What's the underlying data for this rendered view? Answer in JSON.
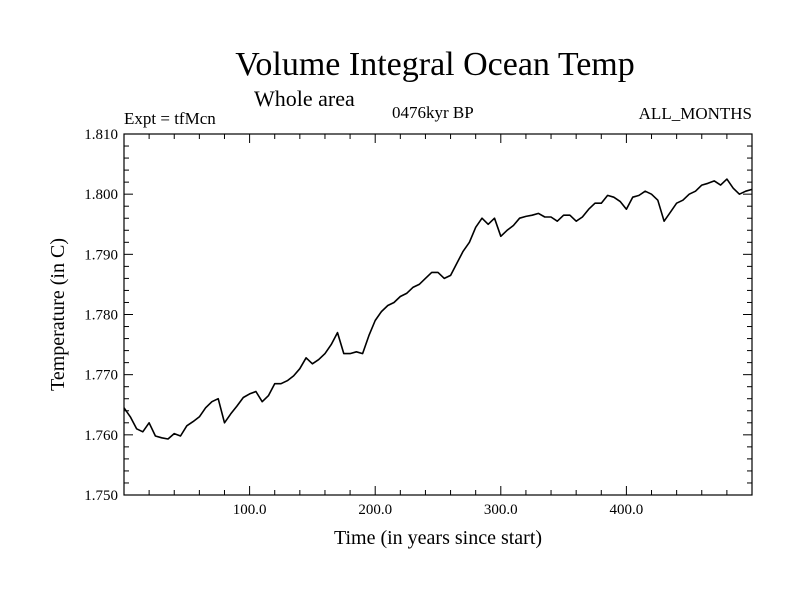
{
  "titles": {
    "main": "Volume Integral Ocean Temp",
    "sub": "Whole area",
    "experiment": "Expt = tfMcn",
    "epoch": "0476kyr BP",
    "months": "ALL_MONTHS"
  },
  "chart_data": {
    "type": "line",
    "title": "Volume Integral Ocean Temp",
    "subtitle": "Whole area",
    "xlabel": "Time (in years since start)",
    "ylabel": "Temperature (in C)",
    "xlim": [
      0,
      500
    ],
    "ylim": [
      1.75,
      1.81
    ],
    "xticks": [
      100,
      200,
      300,
      400
    ],
    "xtick_labels": [
      "100.0",
      "200.0",
      "300.0",
      "400.0"
    ],
    "yticks": [
      1.75,
      1.76,
      1.77,
      1.78,
      1.79,
      1.8,
      1.81
    ],
    "ytick_labels": [
      "1.750",
      "1.760",
      "1.770",
      "1.780",
      "1.790",
      "1.800",
      "1.810"
    ],
    "grid": false,
    "line_color": "#000000",
    "series": [
      {
        "x": [
          0,
          5,
          10,
          15,
          20,
          25,
          30,
          35,
          40,
          45,
          50,
          55,
          60,
          65,
          70,
          75,
          80,
          85,
          90,
          95,
          100,
          105,
          110,
          115,
          120,
          125,
          130,
          135,
          140,
          145,
          150,
          155,
          160,
          165,
          170,
          175,
          180,
          185,
          190,
          195,
          200,
          205,
          210,
          215,
          220,
          225,
          230,
          235,
          240,
          245,
          250,
          255,
          260,
          265,
          270,
          275,
          280,
          285,
          290,
          295,
          300,
          305,
          310,
          315,
          320,
          325,
          330,
          335,
          340,
          345,
          350,
          355,
          360,
          365,
          370,
          375,
          380,
          385,
          390,
          395,
          400,
          405,
          410,
          415,
          420,
          425,
          430,
          435,
          440,
          445,
          450,
          455,
          460,
          465,
          470,
          475,
          480,
          485,
          490,
          495,
          500
        ],
        "y": [
          1.7645,
          1.763,
          1.761,
          1.7605,
          1.762,
          1.7598,
          1.7595,
          1.7593,
          1.7602,
          1.7598,
          1.7615,
          1.7622,
          1.763,
          1.7645,
          1.7655,
          1.766,
          1.762,
          1.7635,
          1.7648,
          1.7662,
          1.7668,
          1.7672,
          1.7655,
          1.7665,
          1.7685,
          1.7685,
          1.769,
          1.7698,
          1.771,
          1.7728,
          1.7718,
          1.7725,
          1.7735,
          1.775,
          1.777,
          1.7735,
          1.7735,
          1.7738,
          1.7735,
          1.7765,
          1.779,
          1.7805,
          1.7815,
          1.782,
          1.783,
          1.7835,
          1.7845,
          1.785,
          1.786,
          1.787,
          1.787,
          1.786,
          1.7865,
          1.7885,
          1.7905,
          1.792,
          1.7945,
          1.796,
          1.795,
          1.796,
          1.793,
          1.794,
          1.7948,
          1.796,
          1.7963,
          1.7965,
          1.7968,
          1.7962,
          1.7962,
          1.7955,
          1.7965,
          1.7965,
          1.7955,
          1.7962,
          1.7975,
          1.7985,
          1.7985,
          1.7998,
          1.7995,
          1.7988,
          1.7975,
          1.7995,
          1.7998,
          1.8005,
          1.8,
          1.799,
          1.7955,
          1.797,
          1.7985,
          1.799,
          1.8,
          1.8005,
          1.8015,
          1.8018,
          1.8022,
          1.8015,
          1.8025,
          1.801,
          1.8,
          1.8005,
          1.8008
        ]
      }
    ]
  }
}
